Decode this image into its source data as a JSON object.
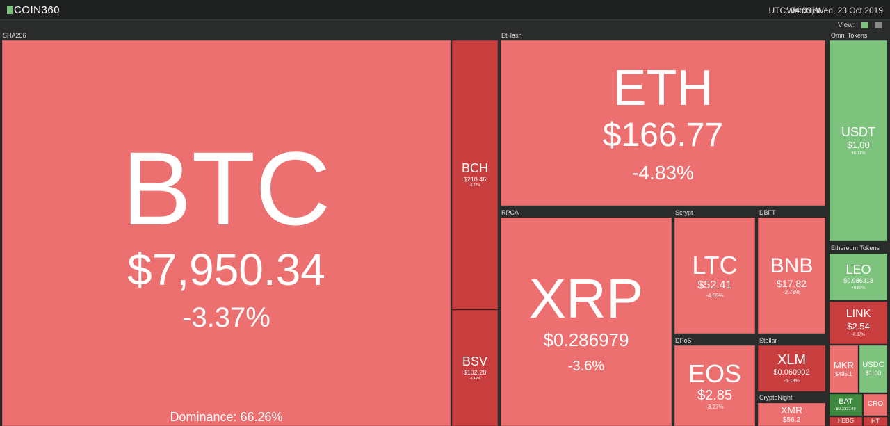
{
  "header": {
    "logo": "COIN360",
    "watchlist": "Watchlist",
    "time": "UTC: 04:03, Wed, 23 Oct 2019",
    "view": "View:"
  },
  "groups": [
    {
      "label": "SHA256",
      "tiles": [
        {
          "symbol": "BTC",
          "price": "$7,950.34",
          "change": "-3.37%",
          "color": "#ec7070",
          "extra": "Dominance: 66.26%"
        },
        {
          "symbol": "BCH",
          "price": "$218.46",
          "change": "-6.27%",
          "color": "#c83e3e"
        },
        {
          "symbol": "BSV",
          "price": "$102.28",
          "change": "-6.49%",
          "color": "#c83e3e"
        }
      ]
    },
    {
      "label": "EtHash",
      "tiles": [
        {
          "symbol": "ETH",
          "price": "$166.77",
          "change": "-4.83%",
          "color": "#ec7070"
        }
      ]
    },
    {
      "label": "RPCA",
      "tiles": [
        {
          "symbol": "XRP",
          "price": "$0.286979",
          "change": "-3.6%",
          "color": "#ec7070"
        }
      ]
    },
    {
      "label": "Scrypt",
      "tiles": [
        {
          "symbol": "LTC",
          "price": "$52.41",
          "change": "-4.65%",
          "color": "#ec7070"
        }
      ]
    },
    {
      "label": "DBFT",
      "tiles": [
        {
          "symbol": "BNB",
          "price": "$17.82",
          "change": "-2.73%",
          "color": "#ec7070"
        }
      ]
    },
    {
      "label": "DPoS",
      "tiles": [
        {
          "symbol": "EOS",
          "price": "$2.85",
          "change": "-3.27%",
          "color": "#ec7070"
        }
      ]
    },
    {
      "label": "Stellar",
      "tiles": [
        {
          "symbol": "XLM",
          "price": "$0.060902",
          "change": "-5.18%",
          "color": "#c83e3e"
        }
      ]
    },
    {
      "label": "CryptoNight",
      "tiles": [
        {
          "symbol": "XMR",
          "price": "$56.2",
          "color": "#ec7070"
        }
      ]
    },
    {
      "label": "Omni Tokens",
      "tiles": [
        {
          "symbol": "USDT",
          "price": "$1.00",
          "change": "+0.11%",
          "color": "#7dc27d"
        }
      ]
    },
    {
      "label": "Ethereum Tokens",
      "tiles": [
        {
          "symbol": "LEO",
          "price": "$0.986313",
          "change": "+0.89%",
          "color": "#7dc27d"
        },
        {
          "symbol": "LINK",
          "price": "$2.54",
          "change": "-6.37%",
          "color": "#c83e3e"
        },
        {
          "symbol": "MKR",
          "price": "$495.1",
          "color": "#ec7070"
        },
        {
          "symbol": "USDC",
          "price": "$1.00",
          "color": "#7dc27d"
        },
        {
          "symbol": "BAT",
          "price": "$0.233149",
          "color": "#3f8a3f"
        },
        {
          "symbol": "CRO",
          "color": "#ec7070"
        },
        {
          "symbol": "HEDG",
          "color": "#c83e3e"
        },
        {
          "symbol": "HT",
          "color": "#c83e3e"
        }
      ]
    }
  ]
}
